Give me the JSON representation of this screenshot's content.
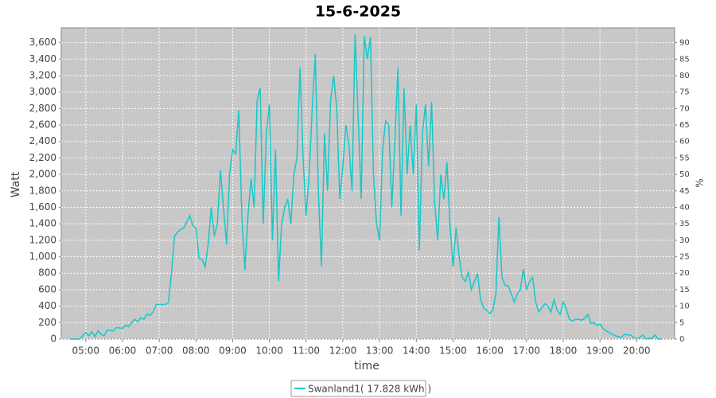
{
  "chart_data": {
    "type": "line",
    "title": "15-6-2025",
    "xlabel": "time",
    "ylabel": "Watt",
    "y2label": "%",
    "x": [
      "04:35",
      "04:50",
      "05:00",
      "05:05",
      "05:10",
      "05:15",
      "05:20",
      "05:25",
      "05:30",
      "05:35",
      "05:45",
      "05:50",
      "06:00",
      "06:05",
      "06:10",
      "06:15",
      "06:20",
      "06:25",
      "06:30",
      "06:35",
      "06:40",
      "06:45",
      "06:50",
      "06:55",
      "07:00",
      "07:10",
      "07:15",
      "07:20",
      "07:25",
      "07:30",
      "07:35",
      "07:40",
      "07:45",
      "07:50",
      "07:55",
      "08:00",
      "08:05",
      "08:10",
      "08:15",
      "08:20",
      "08:25",
      "08:30",
      "08:35",
      "08:40",
      "08:45",
      "08:50",
      "08:55",
      "09:00",
      "09:05",
      "09:10",
      "09:15",
      "09:20",
      "09:25",
      "09:30",
      "09:35",
      "09:40",
      "09:45",
      "09:50",
      "09:55",
      "10:00",
      "10:05",
      "10:10",
      "10:15",
      "10:20",
      "10:25",
      "10:30",
      "10:35",
      "10:40",
      "10:45",
      "10:50",
      "10:55",
      "11:00",
      "11:05",
      "11:10",
      "11:15",
      "11:20",
      "11:25",
      "11:30",
      "11:35",
      "11:40",
      "11:45",
      "11:50",
      "11:55",
      "12:00",
      "12:05",
      "12:10",
      "12:15",
      "12:20",
      "12:25",
      "12:30",
      "12:35",
      "12:40",
      "12:45",
      "12:50",
      "12:55",
      "13:00",
      "13:05",
      "13:10",
      "13:15",
      "13:20",
      "13:25",
      "13:30",
      "13:35",
      "13:40",
      "13:45",
      "13:50",
      "13:55",
      "14:00",
      "14:05",
      "14:10",
      "14:15",
      "14:20",
      "14:25",
      "14:30",
      "14:35",
      "14:40",
      "14:45",
      "14:50",
      "14:55",
      "15:00",
      "15:05",
      "15:10",
      "15:15",
      "15:20",
      "15:25",
      "15:30",
      "15:35",
      "15:40",
      "15:45",
      "15:50",
      "15:55",
      "16:00",
      "16:05",
      "16:10",
      "16:15",
      "16:20",
      "16:25",
      "16:30",
      "16:35",
      "16:40",
      "16:45",
      "16:50",
      "16:55",
      "17:00",
      "17:05",
      "17:10",
      "17:15",
      "17:20",
      "17:25",
      "17:30",
      "17:35",
      "17:40",
      "17:45",
      "17:50",
      "17:55",
      "18:00",
      "18:05",
      "18:10",
      "18:15",
      "18:20",
      "18:25",
      "18:30",
      "18:35",
      "18:40",
      "18:45",
      "18:50",
      "18:55",
      "19:00",
      "19:05",
      "19:10",
      "19:15",
      "19:20",
      "19:25",
      "19:30",
      "19:35",
      "19:40",
      "19:45",
      "19:50",
      "19:55",
      "20:00",
      "20:05",
      "20:10",
      "20:15",
      "20:20",
      "20:25",
      "20:30",
      "20:35",
      "20:40"
    ],
    "series": [
      {
        "name": "Swanland1( 17.828 kWh )",
        "color": "#17c8c8",
        "values": [
          0,
          0,
          80,
          40,
          90,
          30,
          100,
          60,
          40,
          110,
          100,
          140,
          130,
          170,
          150,
          200,
          240,
          210,
          260,
          240,
          300,
          290,
          330,
          420,
          420,
          420,
          440,
          800,
          1250,
          1300,
          1330,
          1350,
          1420,
          1500,
          1380,
          1350,
          980,
          970,
          880,
          1150,
          1600,
          1250,
          1400,
          2050,
          1600,
          1150,
          2000,
          2300,
          2250,
          2780,
          1500,
          840,
          1500,
          1950,
          1600,
          2900,
          3050,
          1400,
          2500,
          2850,
          1200,
          2300,
          700,
          1400,
          1600,
          1700,
          1400,
          2000,
          2200,
          3300,
          2200,
          1500,
          2000,
          2800,
          3460,
          1800,
          880,
          2500,
          1800,
          2900,
          3200,
          2800,
          1700,
          2100,
          2600,
          2350,
          1800,
          3700,
          2700,
          1700,
          3680,
          3400,
          3670,
          2000,
          1400,
          1200,
          2300,
          2650,
          2600,
          1600,
          2400,
          3300,
          1500,
          3050,
          2000,
          2600,
          2000,
          2850,
          1080,
          2500,
          2850,
          2100,
          2880,
          1650,
          1200,
          2000,
          1700,
          2150,
          1400,
          880,
          1350,
          1000,
          750,
          700,
          820,
          600,
          700,
          800,
          480,
          380,
          350,
          310,
          350,
          550,
          1480,
          750,
          650,
          650,
          550,
          450,
          550,
          600,
          850,
          600,
          700,
          750,
          450,
          330,
          380,
          430,
          400,
          330,
          480,
          350,
          300,
          450,
          370,
          240,
          220,
          240,
          240,
          230,
          250,
          300,
          190,
          200,
          170,
          180,
          130,
          100,
          80,
          60,
          40,
          30,
          20,
          60,
          50,
          50,
          20,
          10,
          20,
          50,
          0,
          10,
          10,
          50,
          0,
          0
        ]
      }
    ],
    "xlim": [
      "04:20",
      "21:02"
    ],
    "xticks": [
      "05:00",
      "06:00",
      "07:00",
      "08:00",
      "09:00",
      "10:00",
      "11:00",
      "12:00",
      "13:00",
      "14:00",
      "15:00",
      "16:00",
      "17:00",
      "18:00",
      "19:00",
      "20:00"
    ],
    "ylim": [
      0,
      3780
    ],
    "yticks": [
      0,
      200,
      400,
      600,
      800,
      {
        "value": 1000,
        "label": "1,000"
      },
      {
        "value": 1200,
        "label": "1,200"
      },
      {
        "value": 1400,
        "label": "1,400"
      },
      {
        "value": 1600,
        "label": "1,600"
      },
      {
        "value": 1800,
        "label": "1,800"
      },
      {
        "value": 2000,
        "label": "2,000"
      },
      {
        "value": 2200,
        "label": "2,200"
      },
      {
        "value": 2400,
        "label": "2,400"
      },
      {
        "value": 2600,
        "label": "2,600"
      },
      {
        "value": 2800,
        "label": "2,800"
      },
      {
        "value": 3000,
        "label": "3,000"
      },
      {
        "value": 3200,
        "label": "3,200"
      },
      {
        "value": 3400,
        "label": "3,400"
      },
      {
        "value": 3600,
        "label": "3,600"
      }
    ],
    "y2lim": [
      0,
      94.5
    ],
    "y2ticks": [
      0,
      5,
      10,
      15,
      20,
      25,
      30,
      35,
      40,
      45,
      50,
      55,
      60,
      65,
      70,
      75,
      80,
      85,
      90
    ],
    "grid": true
  }
}
